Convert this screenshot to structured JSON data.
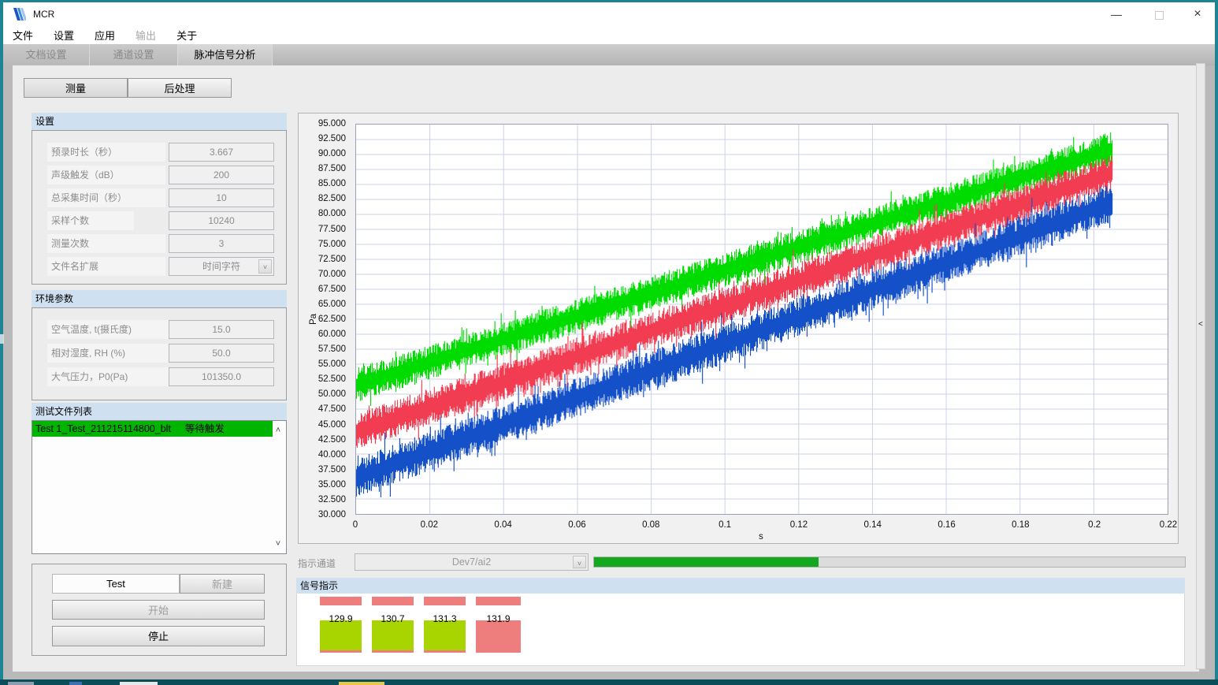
{
  "window": {
    "title": "MCR",
    "controls": {
      "minimize": "—",
      "close": "×"
    }
  },
  "menu": {
    "items": [
      {
        "label": "文件",
        "enabled": true
      },
      {
        "label": "设置",
        "enabled": true
      },
      {
        "label": "应用",
        "enabled": true
      },
      {
        "label": "输出",
        "enabled": false
      },
      {
        "label": "关于",
        "enabled": true
      }
    ]
  },
  "tabs": [
    {
      "label": "文档设置",
      "active": false
    },
    {
      "label": "通道设置",
      "active": false
    },
    {
      "label": "脉冲信号分析",
      "active": true
    }
  ],
  "subtabs": {
    "measure": "测量",
    "post": "后处理"
  },
  "settings": {
    "title": "设置",
    "rows": [
      {
        "label": "预录时长（秒）",
        "value": "3.667"
      },
      {
        "label": "声级触发（dB）",
        "value": "200"
      },
      {
        "label": "总采集时间（秒）",
        "value": "10"
      },
      {
        "label": "采样个数",
        "value": "10240"
      },
      {
        "label": "测量次数",
        "value": "3"
      },
      {
        "label": "文件名扩展",
        "value": "时间字符",
        "dropdown": true
      }
    ]
  },
  "environment": {
    "title": "环境参数",
    "rows": [
      {
        "label": "空气温度, t(摄氏度)",
        "value": "15.0"
      },
      {
        "label": "相对湿度, RH (%)",
        "value": "50.0"
      },
      {
        "label": "大气压力，P0(Pa)",
        "value": "101350.0"
      }
    ]
  },
  "file_list": {
    "title": "测试文件列表",
    "items": [
      {
        "name": "Test 1_Test_211215114800_blt",
        "status": "等待触发",
        "selected": true
      }
    ]
  },
  "controls": {
    "test_name_value": "Test",
    "new_label": "新建",
    "start_label": "开始",
    "stop_label": "停止"
  },
  "indicator_channel": {
    "label": "指示通道",
    "value": "Dev7/ai2",
    "progress_percent": 38
  },
  "signal_panel": {
    "title": "信号指示",
    "indicators": [
      {
        "value": "129.9",
        "state": "ok"
      },
      {
        "value": "130.7",
        "state": "ok"
      },
      {
        "value": "131.3",
        "state": "ok"
      },
      {
        "value": "131.9",
        "state": "alarm"
      }
    ]
  },
  "icons": {
    "dropdown_chevron": "˅",
    "scroll_up": "˄",
    "scroll_down": "˅",
    "splitter_collapse": "<"
  },
  "colors": {
    "header_blue": "#cfe0f1",
    "list_selected": "#00b400",
    "progress_fill": "#14a81e",
    "ok_green": "#a8d400",
    "alarm_pink": "#ee7e7e",
    "desktop_teal": "#1e8493",
    "grid": "#ccd2e8"
  },
  "chart_data": {
    "type": "line",
    "description": "Three noisy rising sound-pressure traces vs time",
    "xlabel": "s",
    "ylabel": "Pa",
    "xlim": [
      0,
      0.22
    ],
    "ylim": [
      30,
      95
    ],
    "x_tick_step": 0.02,
    "y_tick_step": 2.5,
    "grid": true,
    "legend": "none",
    "series": [
      {
        "name": "channel-1-green",
        "color": "#00dc00",
        "t_start": 0,
        "t_end": 0.205,
        "start_pa": 51.5,
        "end_pa": 91.0,
        "noise_half_pa": 2.6
      },
      {
        "name": "channel-2-red",
        "color": "#f23c52",
        "t_start": 0,
        "t_end": 0.205,
        "start_pa": 43.7,
        "end_pa": 87.0,
        "noise_half_pa": 2.8
      },
      {
        "name": "channel-3-blue",
        "color": "#1450c8",
        "t_start": 0,
        "t_end": 0.205,
        "start_pa": 36.0,
        "end_pa": 82.0,
        "noise_half_pa": 3.0
      }
    ]
  }
}
